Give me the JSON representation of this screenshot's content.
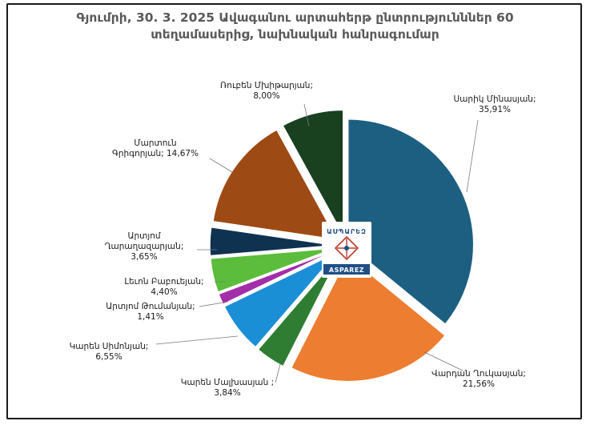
{
  "chart_data": {
    "type": "pie",
    "title_lines": [
      "Գյումրի, 30. 3. 2025 Ավագանու արտահերթ ընտրությունններ 60",
      "տեղամասերից, նախնական հանրագումար"
    ],
    "slices": [
      {
        "name_lines": [
          "Սարիկ Մինասյան;"
        ],
        "value_label": "35,91%",
        "value": 35.91,
        "color": "#1d5f80",
        "explode": 0
      },
      {
        "name_lines": [
          "Վարդան Ղուկասյան;"
        ],
        "value_label": "21,56%",
        "value": 21.56,
        "color": "#ed7d31",
        "explode": 1
      },
      {
        "name_lines": [
          "Կարեն Մալխասյան ;"
        ],
        "value_label": "3,84%",
        "value": 3.84,
        "color": "#2e7d32",
        "explode": 1
      },
      {
        "name_lines": [
          "Կարեն Սիմոնյան;"
        ],
        "value_label": "6,55%",
        "value": 6.55,
        "color": "#1b8fd6",
        "explode": 1
      },
      {
        "name_lines": [
          "Արտյոմ Թումանյան;"
        ],
        "value_label": "1,41%",
        "value": 1.41,
        "color": "#a22fa8",
        "explode": 1
      },
      {
        "name_lines": [
          "Լեւոն Բաբուեյան;"
        ],
        "value_label": "4,40%",
        "value": 4.4,
        "color": "#5bbd3b",
        "explode": 1
      },
      {
        "name_lines": [
          "Արտյոմ",
          "Ղարաղազարյան;"
        ],
        "value_label": "3,65%",
        "value": 3.65,
        "color": "#0f3250",
        "explode": 1
      },
      {
        "name_lines": [
          "Մարտուն",
          "Գրիգորյան; 14,67%"
        ],
        "value_label": "",
        "value": 14.67,
        "color": "#9e4a14",
        "explode": 1
      },
      {
        "name_lines": [
          "Ռուբեն Մխիթարյան;"
        ],
        "value_label": "8,00%",
        "value": 8.0,
        "color": "#19401f",
        "explode": 1
      }
    ],
    "logo": {
      "top_text": "ԱՍՊԱՐԵԶ",
      "bottom_text": "ASPAREZ"
    }
  }
}
